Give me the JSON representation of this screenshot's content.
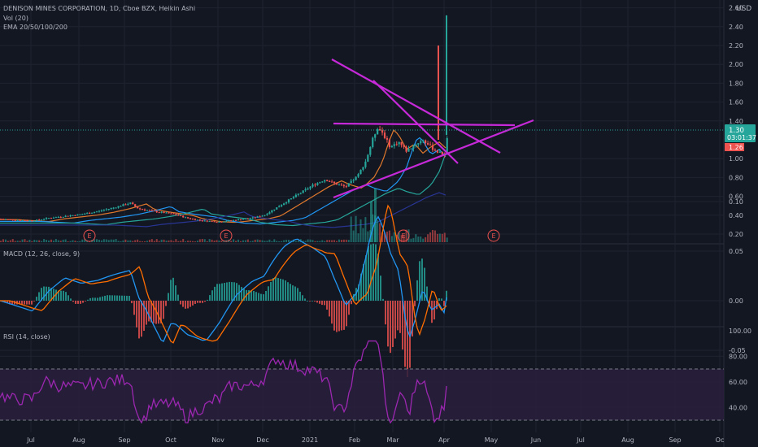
{
  "header": {
    "title": "DENISON MINES CORPORATION, 1D, Cboe BZX, Heikin Ashi",
    "volume": "Vol (20)",
    "ema": "EMA 20/50/100/200"
  },
  "currency": "USD",
  "colors": {
    "bg": "#131722",
    "grid": "#1e2330",
    "text": "#b2b5be",
    "up": "#26a69a",
    "down": "#ef5350",
    "trendline": "#c629d8",
    "ema20": "#e0782c",
    "ema50": "#2196f3",
    "ema100": "#26a69a",
    "ema200": "#283593",
    "macd": "#2196f3",
    "signal": "#ff6d00",
    "rsi": "#9c27b0"
  },
  "price_axis": {
    "ticks": [
      "2.60",
      "2.40",
      "2.20",
      "2.00",
      "1.80",
      "1.60",
      "1.40",
      "1.00",
      "0.80",
      "0.60",
      "0.40",
      "0.20"
    ],
    "last_price": "1.30",
    "countdown": "03:01:37",
    "prev_close": "1.26"
  },
  "macd": {
    "label": "MACD (12, 26, close, 9)",
    "ticks": [
      "0.10",
      "0.05",
      "0.00",
      "-0.05"
    ]
  },
  "rsi": {
    "label": "RSI (14, close)",
    "ticks": [
      "100.00",
      "80.00",
      "60.00",
      "40.00"
    ],
    "upper_band": 70,
    "lower_band": 30
  },
  "time_axis": [
    "Jul",
    "Aug",
    "Sep",
    "Oct",
    "Nov",
    "Dec",
    "2021",
    "Feb",
    "Mar",
    "Apr",
    "May",
    "Jun",
    "Jul",
    "Aug",
    "Sep",
    "Oc"
  ],
  "earnings_marker": "E",
  "chart_data": {
    "type": "line",
    "title": "DENISON MINES CORPORATION, 1D, Cboe BZX, Heikin Ashi",
    "xlabel": "",
    "ylabel": "",
    "ylim": [
      0.1,
      2.65
    ],
    "y_scale": "linear",
    "x": [
      "Jul",
      "Aug",
      "Sep",
      "Oct",
      "Nov",
      "Dec",
      "2021",
      "Feb",
      "Mar",
      "Apr"
    ],
    "series": [
      {
        "values": [
          0.35,
          0.41,
          0.5,
          0.38,
          0.34,
          0.42,
          0.7,
          1.2,
          1.1,
          1.3
        ]
      }
    ],
    "last_value": 1.3,
    "grid": true
  }
}
